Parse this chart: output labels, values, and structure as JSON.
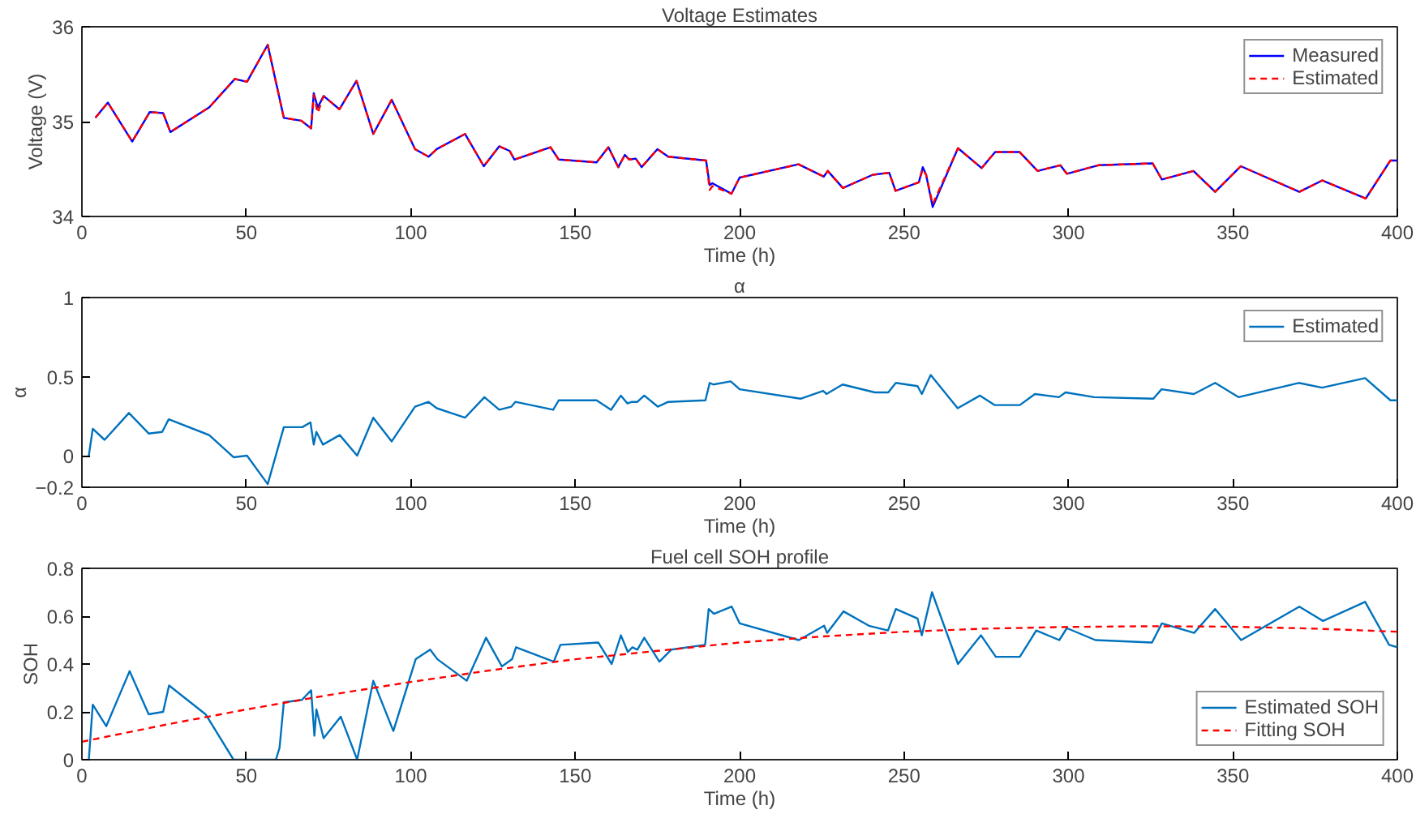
{
  "chart_data": [
    {
      "type": "line",
      "title": "Voltage Estimates",
      "xlabel": "Time (h)",
      "ylabel": "Voltage (V)",
      "xlim": [
        0,
        400
      ],
      "xticks": [
        0,
        50,
        100,
        150,
        200,
        250,
        300,
        350,
        400
      ],
      "ylim": [
        34,
        36
      ],
      "yticks": [
        34,
        35,
        36
      ],
      "grid": false,
      "legend": "top right",
      "series": [
        {
          "name": "Measured",
          "color": "#0000ff",
          "line_style": "solid",
          "x": [
            4.1,
            7.9,
            15.3,
            20.6,
            24.7,
            26.9,
            38.7,
            46.5,
            50.2,
            56.5,
            61.4,
            66.7,
            69.7,
            70.5,
            71.7,
            73.5,
            78.3,
            83.5,
            88.6,
            94.2,
            101.3,
            105.4,
            107.9,
            116.5,
            122.2,
            126.9,
            130.1,
            131.5,
            142.5,
            145,
            156.5,
            160.1,
            163.1,
            165.1,
            166.4,
            168.4,
            170.2,
            175,
            178.3,
            189.8,
            190.9,
            191.7,
            197.5,
            200,
            217.9,
            225.6,
            226.8,
            231.4,
            240.5,
            245.5,
            247.4,
            254.5,
            255.7,
            256.7,
            258.7,
            266.4,
            273.6,
            277.7,
            285.1,
            290.6,
            297.5,
            299.5,
            309.1,
            325.6,
            328.4,
            338,
            344.6,
            352.4,
            370.2,
            377.2,
            390.4,
            397.9,
            400
          ],
          "values": [
            35.04,
            35.2,
            34.79,
            35.1,
            35.09,
            34.89,
            35.15,
            35.45,
            35.42,
            35.81,
            35.04,
            35.01,
            34.93,
            35.3,
            35.15,
            35.27,
            35.13,
            35.43,
            34.87,
            35.23,
            34.71,
            34.63,
            34.71,
            34.87,
            34.53,
            34.74,
            34.69,
            34.6,
            34.73,
            34.6,
            34.57,
            34.73,
            34.52,
            34.65,
            34.6,
            34.61,
            34.52,
            34.71,
            34.63,
            34.59,
            34.33,
            34.35,
            34.24,
            34.41,
            34.55,
            34.42,
            34.48,
            34.3,
            34.44,
            34.46,
            34.27,
            34.36,
            34.52,
            34.44,
            34.1,
            34.72,
            34.51,
            34.68,
            34.68,
            34.48,
            34.54,
            34.45,
            34.54,
            34.56,
            34.39,
            34.48,
            34.26,
            34.53,
            34.26,
            34.38,
            34.19,
            34.59,
            34.59
          ]
        },
        {
          "name": "Estimated",
          "color": "#ff0000",
          "line_style": "dashed",
          "x": [
            4.1,
            7.9,
            15.3,
            20.6,
            24.7,
            26.9,
            38.7,
            46.5,
            50.2,
            56.5,
            61.4,
            66.7,
            69.7,
            70.5,
            71.7,
            73.5,
            78.3,
            83.5,
            88.6,
            94.2,
            101.3,
            105.4,
            107.9,
            116.5,
            122.2,
            126.9,
            130.1,
            131.5,
            142.5,
            145,
            156.5,
            160.1,
            163.1,
            165.1,
            166.4,
            168.4,
            170.2,
            175,
            178.3,
            189.8,
            190.9,
            191.7,
            197.5,
            200,
            217.9,
            225.6,
            226.8,
            231.4,
            240.5,
            245.5,
            247.4,
            254.5,
            255.7,
            256.7,
            258.7,
            266.4,
            273.6,
            277.7,
            285.1,
            290.6,
            297.5,
            299.5,
            309.1,
            325.6,
            328.4,
            338,
            344.6,
            352.4,
            370.2,
            377.2,
            390.4,
            397.9,
            400
          ],
          "values": [
            35.04,
            35.2,
            34.79,
            35.1,
            35.09,
            34.89,
            35.15,
            35.45,
            35.42,
            35.81,
            35.04,
            35.01,
            34.93,
            35.28,
            35.09,
            35.27,
            35.13,
            35.43,
            34.87,
            35.23,
            34.71,
            34.63,
            34.71,
            34.87,
            34.53,
            34.74,
            34.69,
            34.6,
            34.73,
            34.6,
            34.57,
            34.73,
            34.52,
            34.65,
            34.6,
            34.61,
            34.52,
            34.71,
            34.63,
            34.59,
            34.28,
            34.32,
            34.24,
            34.41,
            34.55,
            34.42,
            34.48,
            34.3,
            34.44,
            34.46,
            34.27,
            34.36,
            34.5,
            34.44,
            34.13,
            34.72,
            34.51,
            34.68,
            34.68,
            34.48,
            34.54,
            34.45,
            34.54,
            34.56,
            34.39,
            34.48,
            34.26,
            34.53,
            34.26,
            34.38,
            34.19,
            34.59,
            34.59
          ]
        }
      ]
    },
    {
      "type": "line",
      "title": "α",
      "xlabel": "Time (h)",
      "ylabel": "α",
      "xlim": [
        0,
        400
      ],
      "xticks": [
        0,
        50,
        100,
        150,
        200,
        250,
        300,
        350,
        400
      ],
      "ylim": [
        -0.2,
        1
      ],
      "yticks": [
        -0.2,
        0,
        0.5,
        1
      ],
      "grid": false,
      "legend": "top right",
      "series": [
        {
          "name": "Estimated",
          "color": "#0072bd",
          "line_style": "solid",
          "x": [
            2.1,
            3.3,
            6.9,
            14.3,
            20.3,
            24.4,
            26.4,
            38.7,
            46.1,
            50.2,
            56.5,
            61.4,
            67,
            69.5,
            70.5,
            71.3,
            73.3,
            78.4,
            83.7,
            88.6,
            94.2,
            101.3,
            105.4,
            107.9,
            116.5,
            122.4,
            126.9,
            130.6,
            131.8,
            143.3,
            145,
            156.5,
            160.9,
            163.9,
            165.9,
            167.2,
            168.9,
            171,
            175.1,
            178.3,
            189.6,
            190.9,
            192,
            197.3,
            200,
            218.5,
            225.4,
            226.4,
            231.3,
            241.1,
            245.2,
            247.5,
            254.1,
            255.4,
            258.1,
            266.3,
            273.1,
            277.5,
            285.2,
            289.8,
            297.1,
            299.1,
            307.8,
            325.8,
            328.3,
            338.1,
            344.6,
            351.7,
            370,
            377.1,
            390.2,
            397.9,
            400
          ],
          "values": [
            0,
            0.17,
            0.1,
            0.27,
            0.14,
            0.15,
            0.23,
            0.13,
            -0.01,
            0,
            -0.18,
            0.18,
            0.18,
            0.21,
            0.07,
            0.15,
            0.07,
            0.13,
            0,
            0.24,
            0.09,
            0.31,
            0.34,
            0.3,
            0.24,
            0.37,
            0.29,
            0.31,
            0.34,
            0.29,
            0.35,
            0.35,
            0.29,
            0.38,
            0.33,
            0.34,
            0.34,
            0.38,
            0.31,
            0.34,
            0.35,
            0.46,
            0.45,
            0.47,
            0.42,
            0.36,
            0.41,
            0.39,
            0.45,
            0.4,
            0.4,
            0.46,
            0.44,
            0.39,
            0.51,
            0.3,
            0.38,
            0.32,
            0.32,
            0.39,
            0.37,
            0.4,
            0.37,
            0.36,
            0.42,
            0.39,
            0.46,
            0.37,
            0.46,
            0.43,
            0.49,
            0.35,
            0.35
          ]
        }
      ]
    },
    {
      "type": "line",
      "title": "Fuel cell SOH profile",
      "xlabel": "Time (h)",
      "ylabel": "SOH",
      "xlim": [
        0,
        400
      ],
      "xticks": [
        0,
        50,
        100,
        150,
        200,
        250,
        300,
        350,
        400
      ],
      "ylim": [
        0,
        0.8
      ],
      "yticks": [
        0,
        0.2,
        0.4,
        0.6,
        0.8
      ],
      "grid": false,
      "legend": "bottom right",
      "series": [
        {
          "name": "Estimated SOH",
          "color": "#0072bd",
          "line_style": "solid",
          "x": [
            2.1,
            3.3,
            7.4,
            14.5,
            20.3,
            24.7,
            26.5,
            37.6,
            46.1,
            59,
            60.1,
            61.4,
            66.9,
            69.7,
            70.7,
            71.3,
            73.5,
            78.7,
            83.7,
            88.6,
            94.7,
            101.5,
            105.9,
            108.1,
            117,
            122.9,
            127.7,
            130.8,
            132,
            143.5,
            145.5,
            157,
            161.1,
            163.9,
            166,
            167.4,
            168.9,
            171,
            175.6,
            179.2,
            189.5,
            190.6,
            192.2,
            197.6,
            200,
            218,
            225.7,
            226.6,
            231.6,
            239.3,
            245.1,
            247.5,
            254.1,
            255.4,
            258.5,
            266.4,
            273.4,
            277.9,
            285.2,
            290.2,
            297.2,
            299.5,
            308.2,
            325.4,
            328.4,
            338.2,
            344.6,
            352.5,
            370.2,
            377.4,
            390.2,
            397.5,
            400
          ],
          "values": [
            0,
            0.23,
            0.14,
            0.37,
            0.19,
            0.2,
            0.31,
            0.19,
            0,
            0,
            0.05,
            0.24,
            0.25,
            0.29,
            0.1,
            0.21,
            0.09,
            0.18,
            0,
            0.33,
            0.12,
            0.42,
            0.46,
            0.42,
            0.33,
            0.51,
            0.39,
            0.42,
            0.47,
            0.41,
            0.48,
            0.49,
            0.4,
            0.52,
            0.45,
            0.47,
            0.46,
            0.51,
            0.41,
            0.46,
            0.48,
            0.63,
            0.61,
            0.64,
            0.57,
            0.5,
            0.56,
            0.53,
            0.62,
            0.56,
            0.54,
            0.63,
            0.59,
            0.52,
            0.7,
            0.4,
            0.52,
            0.43,
            0.43,
            0.54,
            0.5,
            0.55,
            0.5,
            0.49,
            0.57,
            0.53,
            0.63,
            0.5,
            0.64,
            0.58,
            0.66,
            0.48,
            0.47
          ]
        },
        {
          "name": "Fitting SOH",
          "color": "#ff0000",
          "line_style": "dashed",
          "x": [
            0,
            25,
            50,
            75,
            100,
            125,
            150,
            175,
            200,
            225,
            250,
            275,
            300,
            325,
            350,
            375,
            400
          ],
          "values": [
            0.075,
            0.145,
            0.21,
            0.27,
            0.325,
            0.375,
            0.42,
            0.455,
            0.49,
            0.515,
            0.535,
            0.548,
            0.555,
            0.558,
            0.556,
            0.548,
            0.535
          ]
        }
      ]
    }
  ]
}
